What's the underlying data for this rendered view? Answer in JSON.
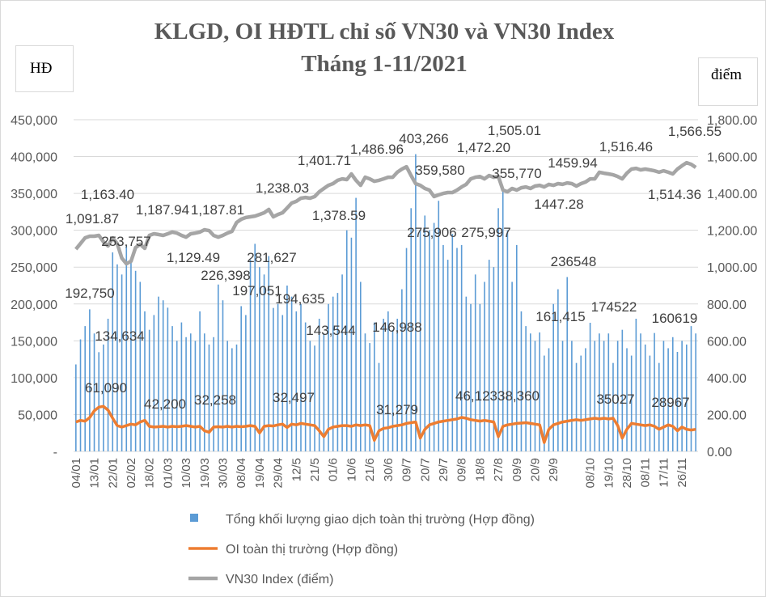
{
  "chart_data": {
    "type": "bar+line",
    "title": [
      "KLGD, OI HĐTL chỉ số VN30 và VN30 Index",
      "Tháng 1-11/2021"
    ],
    "y_left_unit": "HĐ",
    "y_right_unit": "điểm",
    "y_left": {
      "min": 0,
      "max": 450000,
      "step": 50000,
      "ticks": [
        "-",
        "50,000",
        "100,000",
        "150,000",
        "200,000",
        "250,000",
        "300,000",
        "350,000",
        "400,000",
        "450,000"
      ]
    },
    "y_right": {
      "min": 0,
      "max": 1800,
      "step": 200,
      "ticks": [
        "0.00",
        "200.00",
        "400.00",
        "600.00",
        "800.00",
        "1,000.00",
        "1,200.00",
        "1,400.00",
        "1,600.00",
        "1,800.00"
      ]
    },
    "grid": true,
    "legend_position": "bottom",
    "x_tick_labels": [
      "04/01",
      "13/01",
      "22/01",
      "02/02",
      "18/02",
      "01/03",
      "10/03",
      "19/03",
      "30/03",
      "08/04",
      "19/04",
      "29/04",
      "12/5",
      "21/5",
      "01/6",
      "10/6",
      "21/6",
      "30/6",
      "09/7",
      "20/7",
      "29/7",
      "09/8",
      "18/8",
      "27/8",
      "09/9",
      "20/9",
      "29/9",
      "",
      "08/10",
      "19/10",
      "28/10",
      "08/11",
      "17/11",
      "26/11"
    ],
    "series": [
      {
        "name": "Tổng khối lượng giao dịch toàn thị trường (Hợp đồng)",
        "type": "bar",
        "axis": "left",
        "color": "#5b9bd5",
        "values": [
          118000,
          152000,
          170000,
          192750,
          160000,
          134634,
          145000,
          180000,
          270000,
          253757,
          240000,
          280000,
          260000,
          245000,
          230000,
          190000,
          165000,
          185000,
          210000,
          205000,
          195000,
          170000,
          150000,
          175000,
          155000,
          160000,
          150000,
          190000,
          160000,
          145000,
          155000,
          226398,
          205000,
          150000,
          140000,
          145000,
          197051,
          185000,
          260000,
          281627,
          250000,
          240000,
          265000,
          194635,
          200000,
          185000,
          225000,
          210000,
          190000,
          200000,
          175000,
          150000,
          143544,
          180000,
          160000,
          200000,
          210000,
          215000,
          240000,
          300000,
          290000,
          344000,
          230000,
          160000,
          146988,
          175000,
          120000,
          180000,
          190000,
          165000,
          180000,
          220000,
          275906,
          330000,
          403266,
          300000,
          320000,
          300000,
          310000,
          340000,
          280000,
          260000,
          295000,
          275997,
          280000,
          210000,
          200000,
          240000,
          200000,
          230000,
          260000,
          250000,
          330000,
          355770,
          300000,
          230000,
          280000,
          190000,
          170000,
          160000,
          150000,
          161415,
          130000,
          140000,
          200000,
          220000,
          150000,
          236548,
          150000,
          120000,
          130000,
          140000,
          174522,
          150000,
          160000,
          150000,
          160000,
          120000,
          150000,
          165000,
          140000,
          130000,
          180000,
          160000,
          145000,
          130000,
          160619,
          120000,
          150000,
          140000,
          155000,
          135000,
          150000,
          145000,
          170000,
          160000
        ]
      },
      {
        "name": "OI toàn thị trường (Hợp đồng)",
        "type": "line",
        "axis": "left",
        "color": "#ed7d31",
        "values": [
          40000,
          42000,
          41000,
          46000,
          55000,
          60000,
          61090,
          56000,
          45000,
          35000,
          33000,
          35000,
          37000,
          36000,
          40000,
          42200,
          34000,
          33000,
          33500,
          34000,
          33000,
          34000,
          33500,
          34000,
          35000,
          34000,
          33000,
          34000,
          28000,
          26000,
          33000,
          33500,
          33000,
          34000,
          33000,
          34000,
          33500,
          34000,
          35000,
          34000,
          25000,
          34000,
          35000,
          34500,
          36000,
          37000,
          32497,
          37000,
          36000,
          38000,
          37000,
          36000,
          35000,
          28000,
          20000,
          30000,
          33000,
          34000,
          35000,
          35000,
          34000,
          36000,
          35000,
          36000,
          35000,
          15000,
          28000,
          31279,
          32000,
          34000,
          35000,
          36000,
          38000,
          39000,
          40000,
          18000,
          30000,
          36000,
          38000,
          40000,
          41000,
          42000,
          43000,
          44000,
          46123,
          45000,
          43000,
          42000,
          41000,
          42000,
          41000,
          40000,
          20000,
          34000,
          36000,
          37000,
          38000,
          38360,
          39000,
          38000,
          37000,
          36000,
          12000,
          30000,
          36000,
          38000,
          40000,
          41000,
          42000,
          43000,
          42000,
          43000,
          44000,
          45000,
          44000,
          45000,
          44000,
          45000,
          35027,
          18000,
          30000,
          38000,
          37000,
          36000,
          35000,
          36000,
          34000,
          30000,
          33000,
          36000,
          34000,
          28000,
          33000,
          30000,
          28967,
          30000
        ]
      },
      {
        "name": "VN30 Index (điểm)",
        "type": "line",
        "axis": "right",
        "color": "#a5a5a5",
        "values": [
          1097,
          1128,
          1159,
          1168,
          1168,
          1172,
          1137,
          1115,
          1159,
          1128,
          1049,
          1018,
          1032,
          1106,
          1124,
          1102,
          1172,
          1181,
          1177,
          1172,
          1181,
          1190,
          1185,
          1172,
          1163,
          1181,
          1185,
          1190,
          1203,
          1198,
          1172,
          1163,
          1172,
          1185,
          1194,
          1242,
          1260,
          1269,
          1273,
          1277,
          1286,
          1295,
          1313,
          1273,
          1286,
          1295,
          1321,
          1348,
          1357,
          1374,
          1378,
          1374,
          1383,
          1409,
          1427,
          1444,
          1453,
          1471,
          1479,
          1475,
          1506,
          1471,
          1444,
          1488,
          1479,
          1466,
          1471,
          1479,
          1488,
          1488,
          1515,
          1532,
          1545,
          1497,
          1453,
          1444,
          1427,
          1418,
          1383,
          1392,
          1400,
          1405,
          1405,
          1418,
          1435,
          1449,
          1479,
          1488,
          1492,
          1479,
          1497,
          1488,
          1492,
          1418,
          1409,
          1427,
          1418,
          1431,
          1435,
          1427,
          1440,
          1444,
          1435,
          1449,
          1444,
          1453,
          1449,
          1457,
          1453,
          1440,
          1453,
          1462,
          1479,
          1479,
          1515,
          1510,
          1506,
          1501,
          1492,
          1479,
          1510,
          1532,
          1536,
          1528,
          1532,
          1528,
          1523,
          1515,
          1523,
          1515,
          1506,
          1532,
          1550,
          1567,
          1558,
          1541
        ]
      }
    ],
    "annotations": {
      "volume": [
        "192,750",
        "134,634",
        "253,757",
        "226,398",
        "197,051",
        "281,627",
        "194,635",
        "143,544",
        "146,988",
        "403,266",
        "359,580",
        "275,906",
        "275,997",
        "355,770",
        "236548",
        "161,415",
        "174522",
        "160619"
      ],
      "oi": [
        "61,090",
        "42,200",
        "32,258",
        "32,497",
        "31,279",
        "46,123",
        "38,360",
        "35027",
        "28967"
      ],
      "index": [
        "1,091.87",
        "1,163.40",
        "1,187.94",
        "1,187.81",
        "1,129.49",
        "1,238.03",
        "1,401.71",
        "1,378.59",
        "1,486.96",
        "1,472.20",
        "1,505.01",
        "1459.94",
        "1447.28",
        "1,516.46",
        "1,566.55",
        "1,514.36"
      ]
    }
  }
}
